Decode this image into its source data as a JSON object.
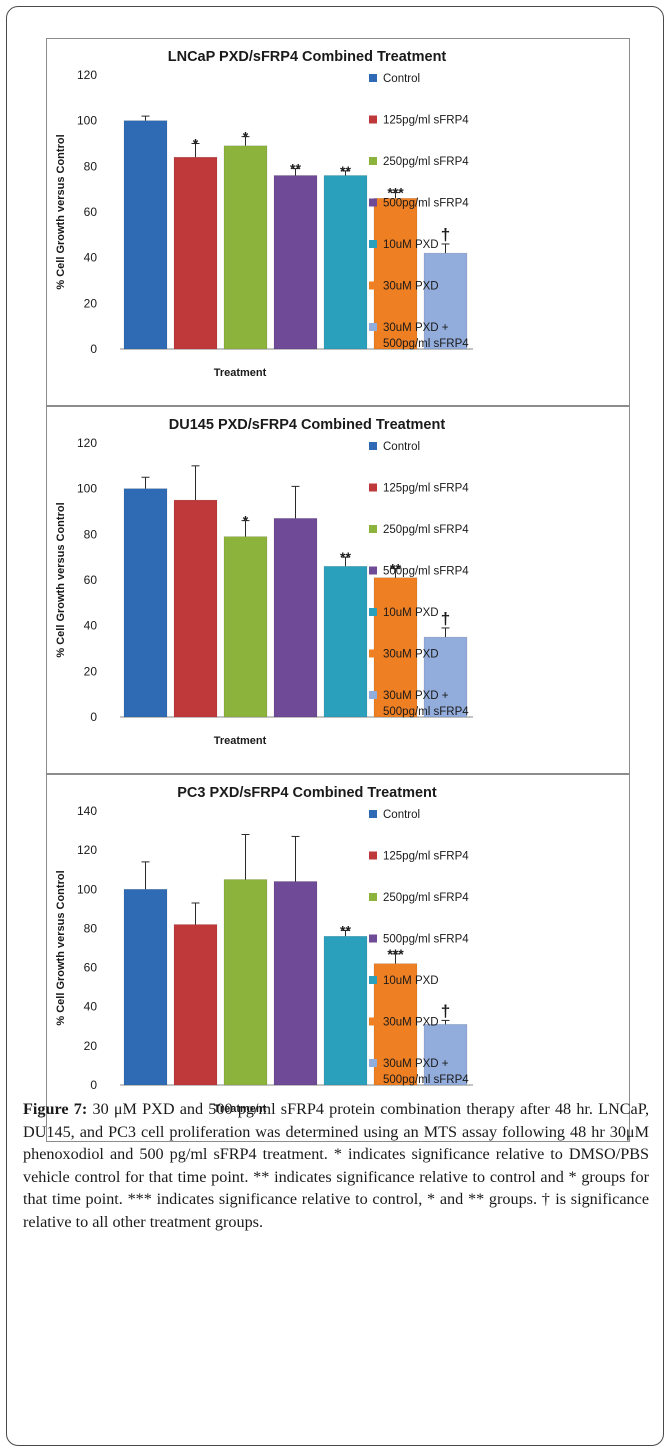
{
  "caption": {
    "label": "Figure 7:",
    "text": "30 μM PXD and 500 pg/ml sFRP4 protein combination therapy after 48 hr. LNCaP, DU145, and PC3 cell proliferation was determined using an MTS assay following 48 hr 30μM phenoxodiol and 500 pg/ml sFRP4 treatment. * indicates significance relative to DMSO/PBS vehicle control for that time point. ** indicates significance relative to control and * groups for that time point. *** indicates significance relative to control, * and ** groups. † is significance relative to all other treatment groups."
  },
  "legend_labels": [
    "Control",
    "125pg/ml sFRP4",
    "250pg/ml sFRP4",
    "500pg/ml sFRP4",
    "10uM PXD",
    "30uM PXD",
    "30uM PXD +",
    "500pg/ml sFRP4"
  ],
  "colors": [
    "#2e6bb4",
    "#c0393a",
    "#8cb33c",
    "#6f4a96",
    "#2ba0bd",
    "#ee7f22",
    "#92acdb"
  ],
  "chart_data": [
    {
      "type": "bar",
      "title": "LNCaP PXD/sFRP4 Combined Treatment",
      "xlabel": "Treatment",
      "ylabel": "% Cell Growth versus Control",
      "ylim": [
        0,
        120
      ],
      "yticks": [
        0,
        20,
        40,
        60,
        80,
        100,
        120
      ],
      "legend": "right",
      "grid": false,
      "series": [
        {
          "name": "Control",
          "value": 100,
          "error": 2,
          "annotation": ""
        },
        {
          "name": "125pg/ml sFRP4",
          "value": 84,
          "error": 6,
          "annotation": "*"
        },
        {
          "name": "250pg/ml sFRP4",
          "value": 89,
          "error": 4,
          "annotation": "*"
        },
        {
          "name": "500pg/ml sFRP4",
          "value": 76,
          "error": 3,
          "annotation": "**"
        },
        {
          "name": "10uM PXD",
          "value": 76,
          "error": 2,
          "annotation": "**"
        },
        {
          "name": "30uM PXD",
          "value": 66,
          "error": 2.5,
          "annotation": "***"
        },
        {
          "name": "30uM PXD + 500pg/ml sFRP4",
          "value": 42,
          "error": 4,
          "annotation": "†"
        }
      ]
    },
    {
      "type": "bar",
      "title": "DU145 PXD/sFRP4 Combined Treatment",
      "xlabel": "Treatment",
      "ylabel": "% Cell Growth versus Control",
      "ylim": [
        0,
        120
      ],
      "yticks": [
        0,
        20,
        40,
        60,
        80,
        100,
        120
      ],
      "legend": "right",
      "grid": false,
      "series": [
        {
          "name": "Control",
          "value": 100,
          "error": 5,
          "annotation": ""
        },
        {
          "name": "125pg/ml sFRP4",
          "value": 95,
          "error": 15,
          "annotation": ""
        },
        {
          "name": "250pg/ml sFRP4",
          "value": 79,
          "error": 7,
          "annotation": "*"
        },
        {
          "name": "500pg/ml sFRP4",
          "value": 87,
          "error": 14,
          "annotation": ""
        },
        {
          "name": "10uM PXD",
          "value": 66,
          "error": 4,
          "annotation": "**"
        },
        {
          "name": "30uM PXD",
          "value": 61,
          "error": 4,
          "annotation": "**"
        },
        {
          "name": "30uM PXD + 500pg/ml sFRP4",
          "value": 35,
          "error": 4,
          "annotation": "†"
        }
      ]
    },
    {
      "type": "bar",
      "title": "PC3 PXD/sFRP4 Combined Treatment",
      "xlabel": "Treatment",
      "ylabel": "% Cell Growth versus Control",
      "ylim": [
        0,
        140
      ],
      "yticks": [
        0,
        20,
        40,
        60,
        80,
        100,
        120,
        140
      ],
      "legend": "right",
      "grid": false,
      "series": [
        {
          "name": "Control",
          "value": 100,
          "error": 14,
          "annotation": ""
        },
        {
          "name": "125pg/ml sFRP4",
          "value": 82,
          "error": 11,
          "annotation": ""
        },
        {
          "name": "250pg/ml sFRP4",
          "value": 105,
          "error": 23,
          "annotation": ""
        },
        {
          "name": "500pg/ml sFRP4",
          "value": 104,
          "error": 23,
          "annotation": ""
        },
        {
          "name": "10uM PXD",
          "value": 76,
          "error": 3,
          "annotation": "**"
        },
        {
          "name": "30uM PXD",
          "value": 62,
          "error": 5,
          "annotation": "***"
        },
        {
          "name": "30uM PXD + 500pg/ml sFRP4",
          "value": 31,
          "error": 2,
          "annotation": "†"
        }
      ]
    }
  ]
}
